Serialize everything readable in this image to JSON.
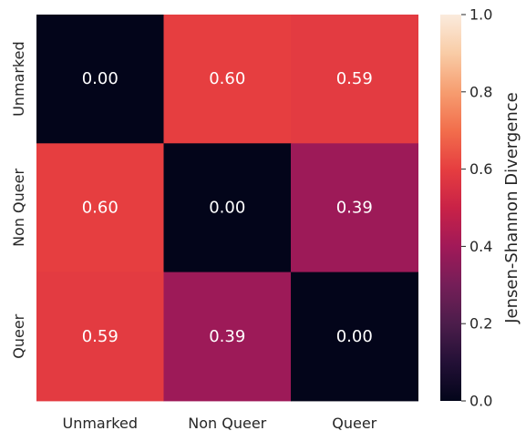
{
  "chart_data": {
    "type": "heatmap",
    "title": "",
    "rows": [
      "Unmarked",
      "Non Queer",
      "Queer"
    ],
    "cols": [
      "Unmarked",
      "Non Queer",
      "Queer"
    ],
    "values": [
      [
        0.0,
        0.6,
        0.59
      ],
      [
        0.6,
        0.0,
        0.39
      ],
      [
        0.59,
        0.39,
        0.0
      ]
    ],
    "annotations": [
      [
        "0.00",
        "0.60",
        "0.59"
      ],
      [
        "0.60",
        "0.00",
        "0.39"
      ],
      [
        "0.59",
        "0.39",
        "0.00"
      ]
    ],
    "colorbar": {
      "label": "Jensen-Shannon Divergence",
      "range": [
        0.0,
        1.0
      ],
      "ticks": [
        "0.0",
        "0.2",
        "0.4",
        "0.6",
        "0.8",
        "1.0"
      ],
      "tick_values": [
        0.0,
        0.2,
        0.4,
        0.6,
        0.8,
        1.0
      ],
      "colormap": "rocket"
    },
    "grid": false
  }
}
